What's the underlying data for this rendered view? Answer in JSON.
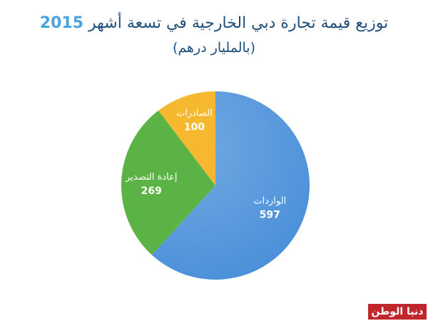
{
  "header": {
    "title": "توزيع قيمة تجارة دبي الخارجية في تسعة أشهر",
    "year": "2015",
    "subtitle": "(بالمليار درهم)"
  },
  "chart_data": {
    "type": "pie",
    "title": "توزيع قيمة تجارة دبي الخارجية في تسعة أشهر 2015",
    "subtitle": "(بالمليار درهم)",
    "slices": [
      {
        "label": "الواردات",
        "value": 597,
        "color": "#4a90d9"
      },
      {
        "label": "إعادة التصدير",
        "value": 269,
        "color": "#5cb345"
      },
      {
        "label": "الصادرات",
        "value": 100,
        "color": "#f5b82e"
      }
    ]
  },
  "brand": {
    "logo_text": "دنيا الوطن",
    "color": "#c0272d"
  }
}
